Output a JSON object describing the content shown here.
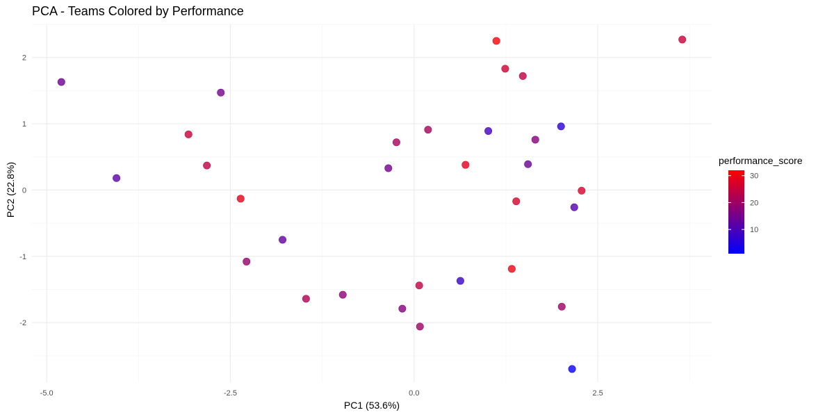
{
  "chart_data": {
    "type": "scatter",
    "title": "PCA - Teams Colored by Performance",
    "xlabel": "PC1 (53.6%)",
    "ylabel": "PC2 (22.8%)",
    "xlim": [
      -5.2,
      4.05
    ],
    "ylim": [
      -2.9,
      2.5
    ],
    "x_ticks": [
      -5.0,
      -2.5,
      0.0,
      2.5
    ],
    "x_tick_labels": [
      "-5.0",
      "-2.5",
      "0.0",
      "2.5"
    ],
    "y_ticks": [
      -2,
      -1,
      0,
      1,
      2
    ],
    "y_tick_labels": [
      "-2",
      "-1",
      "0",
      "1",
      "2"
    ],
    "grid": true,
    "legend": {
      "title": "performance_score",
      "placement": "right",
      "type": "colorbar",
      "range": [
        1,
        32
      ],
      "ticks": [
        10,
        20,
        30
      ],
      "tick_labels": [
        "10",
        "20",
        "30"
      ],
      "low_color": "#0000FF",
      "high_color": "#FF0000"
    },
    "points": [
      {
        "x": -4.8,
        "y": 1.63,
        "performance_score": 14
      },
      {
        "x": -4.05,
        "y": 0.18,
        "performance_score": 12
      },
      {
        "x": -3.07,
        "y": 0.84,
        "performance_score": 25
      },
      {
        "x": -2.82,
        "y": 0.37,
        "performance_score": 24
      },
      {
        "x": -2.63,
        "y": 1.47,
        "performance_score": 15
      },
      {
        "x": -2.36,
        "y": -0.13,
        "performance_score": 29
      },
      {
        "x": -2.28,
        "y": -1.08,
        "performance_score": 19
      },
      {
        "x": -1.79,
        "y": -0.75,
        "performance_score": 13
      },
      {
        "x": -1.47,
        "y": -1.64,
        "performance_score": 22
      },
      {
        "x": -0.97,
        "y": -1.58,
        "performance_score": 18
      },
      {
        "x": -0.35,
        "y": 0.33,
        "performance_score": 15
      },
      {
        "x": -0.24,
        "y": 0.72,
        "performance_score": 21
      },
      {
        "x": -0.16,
        "y": -1.79,
        "performance_score": 17
      },
      {
        "x": 0.07,
        "y": -1.44,
        "performance_score": 24
      },
      {
        "x": 0.08,
        "y": -2.06,
        "performance_score": 20
      },
      {
        "x": 0.19,
        "y": 0.91,
        "performance_score": 21
      },
      {
        "x": 0.63,
        "y": -1.37,
        "performance_score": 8
      },
      {
        "x": 0.7,
        "y": 0.38,
        "performance_score": 28
      },
      {
        "x": 1.01,
        "y": 0.89,
        "performance_score": 9
      },
      {
        "x": 1.12,
        "y": 2.25,
        "performance_score": 31
      },
      {
        "x": 1.24,
        "y": 1.83,
        "performance_score": 26
      },
      {
        "x": 1.33,
        "y": -1.19,
        "performance_score": 30
      },
      {
        "x": 1.39,
        "y": -0.17,
        "performance_score": 27
      },
      {
        "x": 1.48,
        "y": 1.72,
        "performance_score": 24
      },
      {
        "x": 1.55,
        "y": 0.39,
        "performance_score": 14
      },
      {
        "x": 1.65,
        "y": 0.76,
        "performance_score": 17
      },
      {
        "x": 2.0,
        "y": 0.96,
        "performance_score": 6
      },
      {
        "x": 2.01,
        "y": -1.76,
        "performance_score": 20
      },
      {
        "x": 2.15,
        "y": -2.7,
        "performance_score": 2
      },
      {
        "x": 2.18,
        "y": -0.26,
        "performance_score": 11
      },
      {
        "x": 2.28,
        "y": -0.01,
        "performance_score": 27
      },
      {
        "x": 3.65,
        "y": 2.27,
        "performance_score": 25
      }
    ]
  }
}
